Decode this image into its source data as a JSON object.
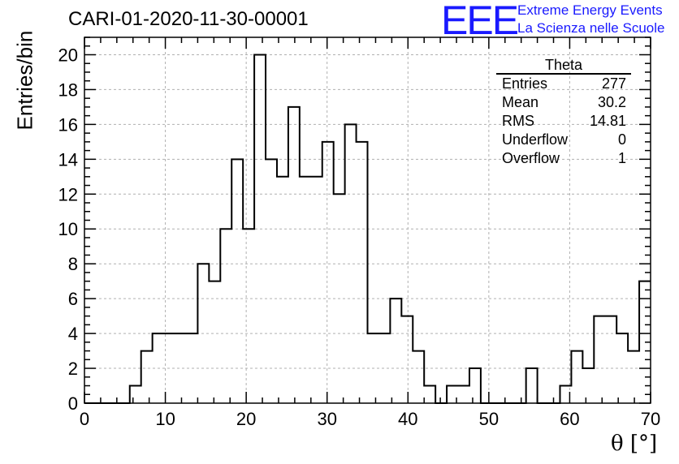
{
  "title": "CARI-01-2020-11-30-00001",
  "logo": {
    "mark": "EEE",
    "line1": "Extreme Energy Events",
    "line2": "La Scienza nelle Scuole",
    "color": "#1a1aff"
  },
  "stats": {
    "title": "Theta",
    "rows": [
      {
        "label": "Entries",
        "value": "277"
      },
      {
        "label": "Mean",
        "value": "30.2"
      },
      {
        "label": "RMS",
        "value": "14.81"
      },
      {
        "label": "Underflow",
        "value": "0"
      },
      {
        "label": "Overflow",
        "value": "1"
      }
    ]
  },
  "chart_data": {
    "type": "bar",
    "title": "CARI-01-2020-11-30-00001",
    "xlabel": "θ [°]",
    "ylabel": "Entries/bin",
    "xlim": [
      0,
      70
    ],
    "ylim": [
      0,
      21
    ],
    "xticks": [
      0,
      10,
      20,
      30,
      40,
      50,
      60,
      70
    ],
    "yticks": [
      0,
      2,
      4,
      6,
      8,
      10,
      12,
      14,
      16,
      18,
      20
    ],
    "grid": true,
    "bin_width": 1.4,
    "bin_edges_start": 0,
    "values": [
      0,
      0,
      0,
      0,
      1,
      3,
      4,
      4,
      4,
      4,
      8,
      7,
      10,
      14,
      10,
      20,
      14,
      13,
      17,
      13,
      13,
      15,
      12,
      16,
      15,
      4,
      4,
      6,
      5,
      3,
      1,
      0,
      1,
      1,
      2,
      0,
      0,
      0,
      0,
      2,
      0,
      0,
      1,
      3,
      2,
      5,
      5,
      4,
      3,
      7
    ],
    "line_color": "#000000"
  }
}
